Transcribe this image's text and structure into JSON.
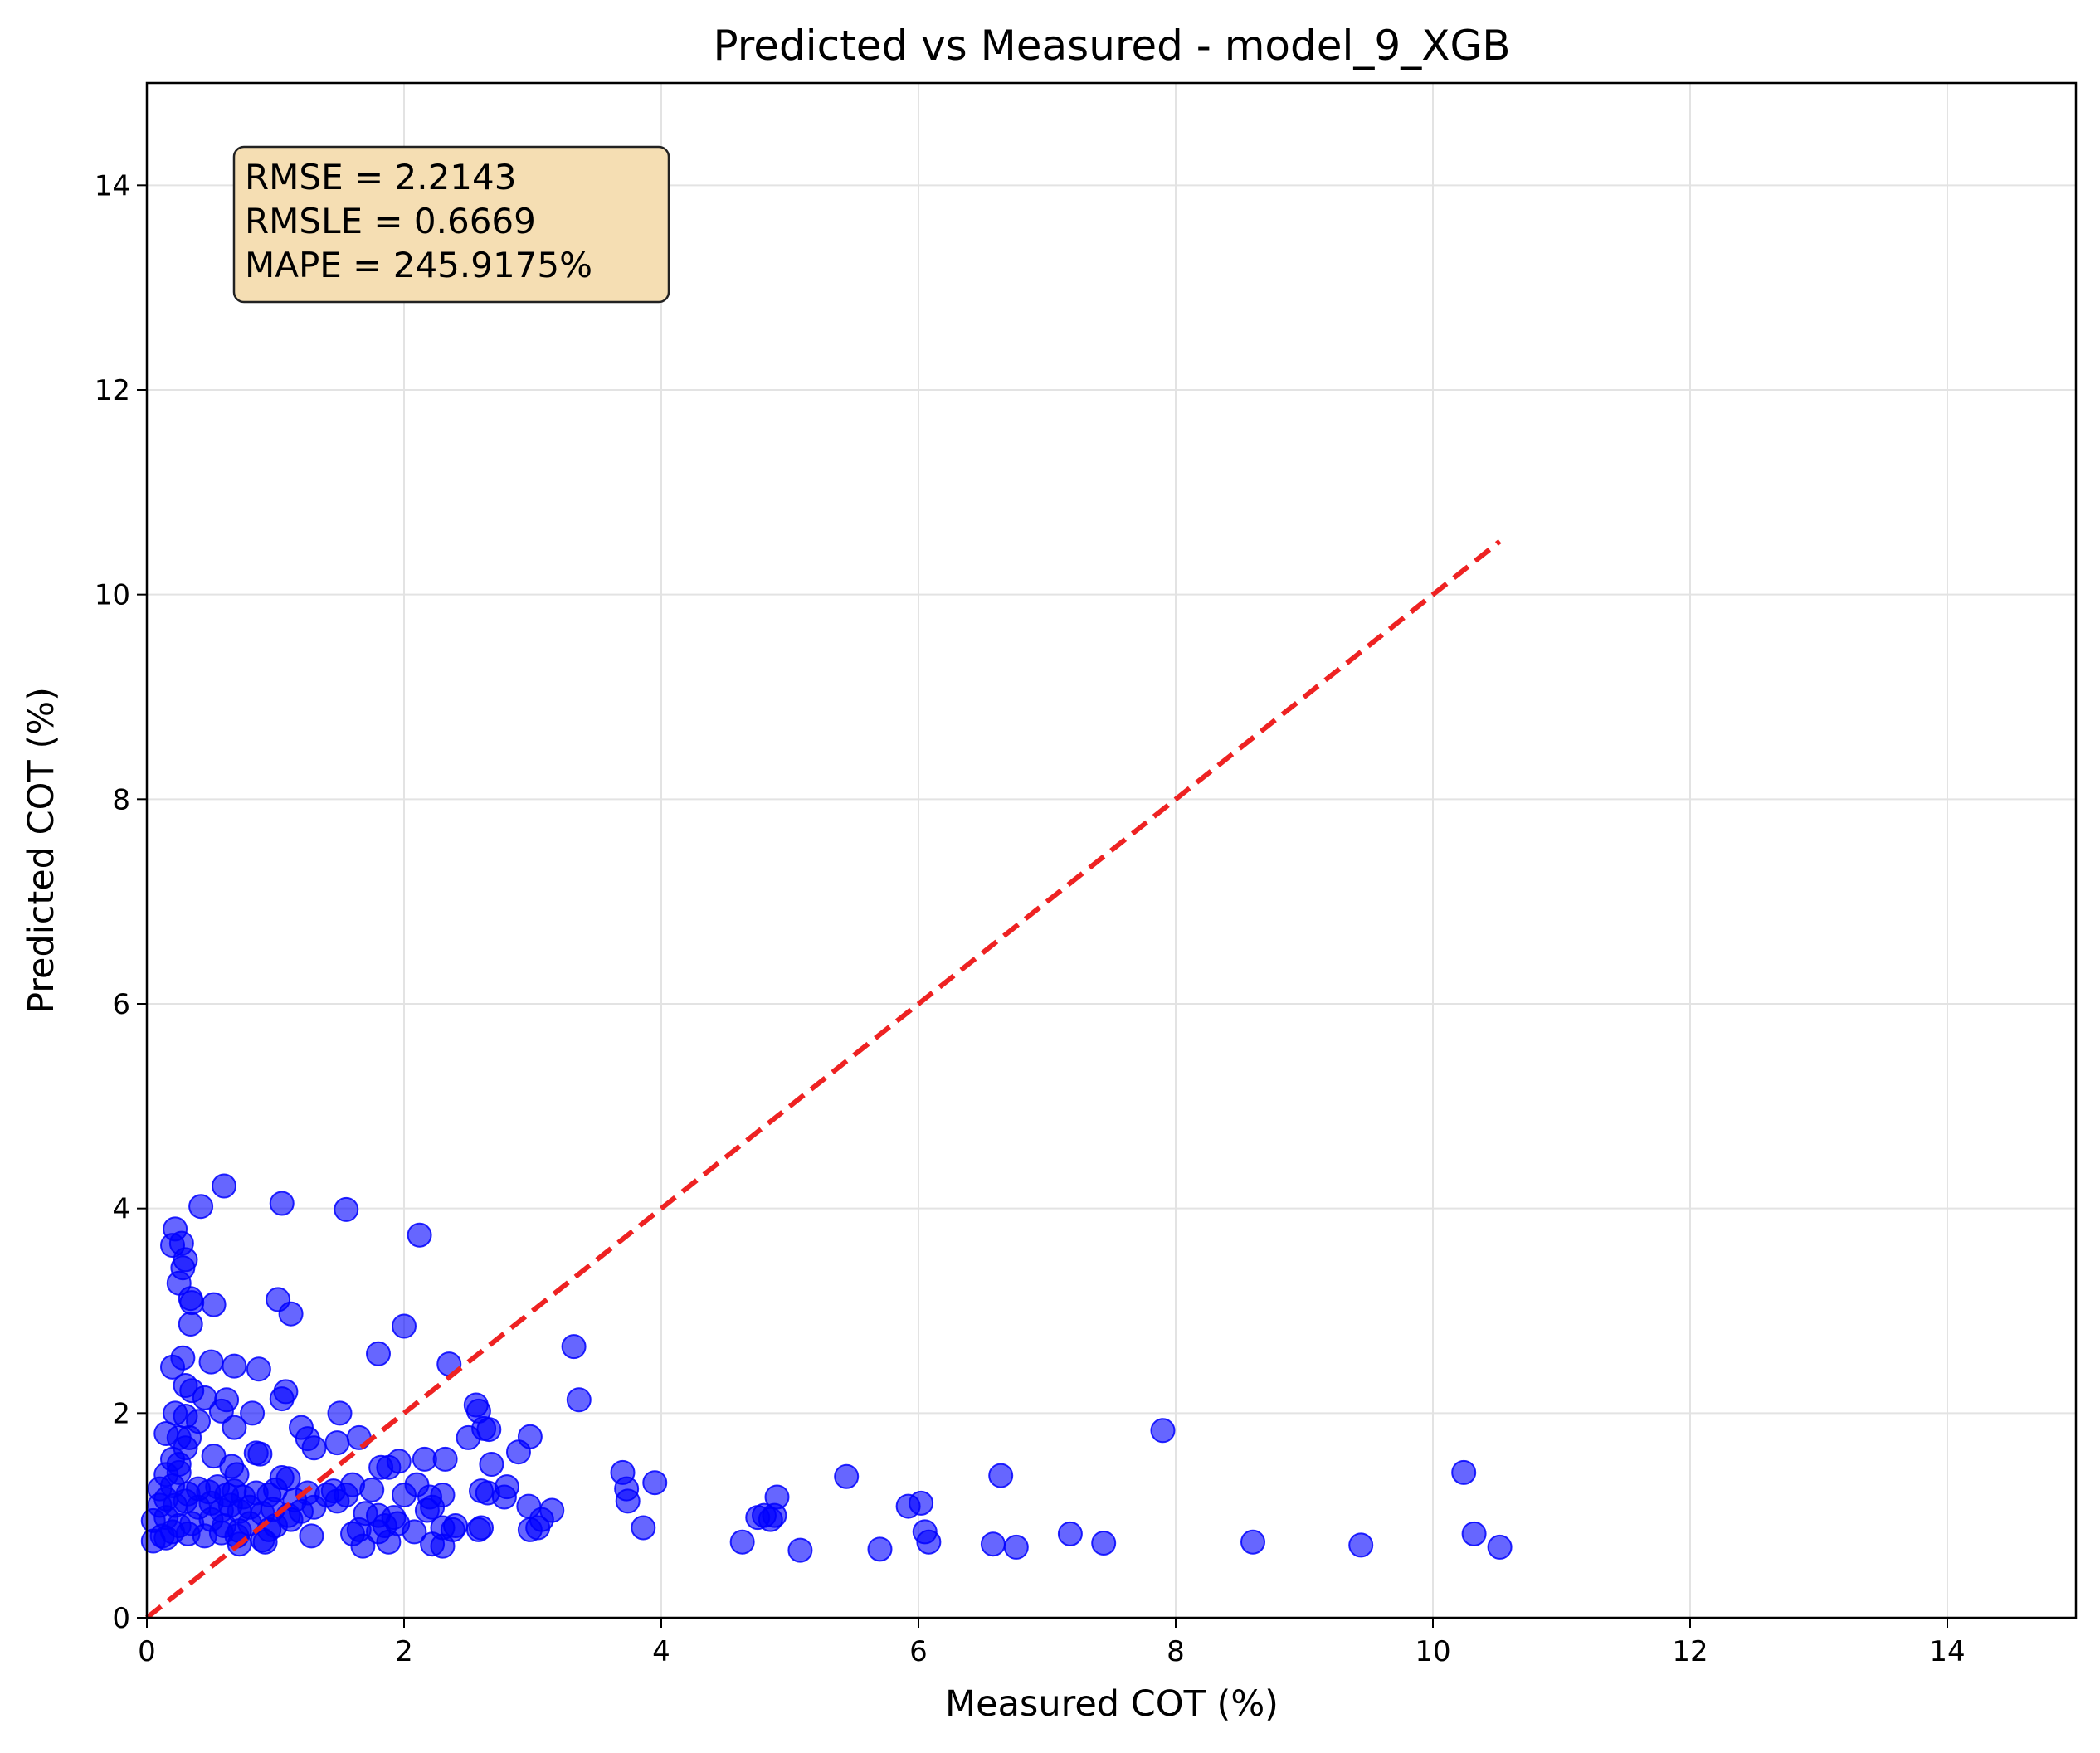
{
  "chart_data": {
    "type": "scatter",
    "title": "Predicted vs Measured - model_9_XGB",
    "xlabel": "Measured COT (%)",
    "ylabel": "Predicted COT (%)",
    "xlim": [
      0,
      15
    ],
    "ylim": [
      0,
      15
    ],
    "xticks": [
      "0",
      "2",
      "4",
      "6",
      "8",
      "10",
      "12",
      "14"
    ],
    "yticks": [
      "0",
      "2",
      "4",
      "6",
      "8",
      "10",
      "12",
      "14"
    ],
    "grid": true,
    "point_color": "#0000ff",
    "reference_line": {
      "x": [
        0,
        10.52
      ],
      "y": [
        0,
        10.52
      ],
      "color": "#ee2222",
      "style": "dashed"
    },
    "annotation": [
      "RMSE = 2.2143",
      "RMSLE = 0.6669",
      "MAPE = 245.9175%"
    ],
    "annotation_background": "#f5deb3",
    "points": [
      [
        0.6,
        4.22
      ],
      [
        0.42,
        4.02
      ],
      [
        1.05,
        4.05
      ],
      [
        1.55,
        3.99
      ],
      [
        2.12,
        3.74
      ],
      [
        0.22,
        3.8
      ],
      [
        0.2,
        3.64
      ],
      [
        0.27,
        3.66
      ],
      [
        0.3,
        3.5
      ],
      [
        0.28,
        3.42
      ],
      [
        0.25,
        3.27
      ],
      [
        0.34,
        3.12
      ],
      [
        0.35,
        3.08
      ],
      [
        0.52,
        3.06
      ],
      [
        1.02,
        3.11
      ],
      [
        1.12,
        2.97
      ],
      [
        0.34,
        2.87
      ],
      [
        2.0,
        2.85
      ],
      [
        3.32,
        2.65
      ],
      [
        1.8,
        2.58
      ],
      [
        2.35,
        2.48
      ],
      [
        0.28,
        2.54
      ],
      [
        0.2,
        2.45
      ],
      [
        0.5,
        2.5
      ],
      [
        0.68,
        2.46
      ],
      [
        0.87,
        2.43
      ],
      [
        0.3,
        2.27
      ],
      [
        0.35,
        2.22
      ],
      [
        0.45,
        2.15
      ],
      [
        0.62,
        2.13
      ],
      [
        1.05,
        2.14
      ],
      [
        1.08,
        2.21
      ],
      [
        3.36,
        2.13
      ],
      [
        2.56,
        2.08
      ],
      [
        2.58,
        2.02
      ],
      [
        0.22,
        2.0
      ],
      [
        0.3,
        1.97
      ],
      [
        0.4,
        1.92
      ],
      [
        0.58,
        2.02
      ],
      [
        0.82,
        2.0
      ],
      [
        1.5,
        2.0
      ],
      [
        1.2,
        1.86
      ],
      [
        2.62,
        1.85
      ],
      [
        2.66,
        1.84
      ],
      [
        0.68,
        1.86
      ],
      [
        0.15,
        1.8
      ],
      [
        0.25,
        1.76
      ],
      [
        0.33,
        1.76
      ],
      [
        1.25,
        1.75
      ],
      [
        1.65,
        1.76
      ],
      [
        2.5,
        1.76
      ],
      [
        2.98,
        1.77
      ],
      [
        1.48,
        1.71
      ],
      [
        1.3,
        1.66
      ],
      [
        0.3,
        1.66
      ],
      [
        7.9,
        1.83
      ],
      [
        0.52,
        1.58
      ],
      [
        0.85,
        1.61
      ],
      [
        0.88,
        1.6
      ],
      [
        2.32,
        1.55
      ],
      [
        2.89,
        1.62
      ],
      [
        0.2,
        1.55
      ],
      [
        0.25,
        1.5
      ],
      [
        0.66,
        1.48
      ],
      [
        1.82,
        1.47
      ],
      [
        1.88,
        1.47
      ],
      [
        1.96,
        1.53
      ],
      [
        2.16,
        1.55
      ],
      [
        2.68,
        1.5
      ],
      [
        3.7,
        1.42
      ],
      [
        0.15,
        1.4
      ],
      [
        0.25,
        1.42
      ],
      [
        0.7,
        1.4
      ],
      [
        1.05,
        1.37
      ],
      [
        1.1,
        1.36
      ],
      [
        1.6,
        1.3
      ],
      [
        1.75,
        1.25
      ],
      [
        2.1,
        1.3
      ],
      [
        2.8,
        1.28
      ],
      [
        3.73,
        1.26
      ],
      [
        3.95,
        1.32
      ],
      [
        5.44,
        1.38
      ],
      [
        6.64,
        1.39
      ],
      [
        10.24,
        1.42
      ],
      [
        0.1,
        1.26
      ],
      [
        0.2,
        1.29
      ],
      [
        0.32,
        1.21
      ],
      [
        0.4,
        1.26
      ],
      [
        0.48,
        1.23
      ],
      [
        0.55,
        1.28
      ],
      [
        0.62,
        1.2
      ],
      [
        0.68,
        1.24
      ],
      [
        0.75,
        1.18
      ],
      [
        0.85,
        1.22
      ],
      [
        0.95,
        1.2
      ],
      [
        1.0,
        1.25
      ],
      [
        1.15,
        1.15
      ],
      [
        1.25,
        1.22
      ],
      [
        1.4,
        1.2
      ],
      [
        1.45,
        1.24
      ],
      [
        1.55,
        1.2
      ],
      [
        2.0,
        1.2
      ],
      [
        2.2,
        1.18
      ],
      [
        2.3,
        1.2
      ],
      [
        2.6,
        1.24
      ],
      [
        2.65,
        1.22
      ],
      [
        2.78,
        1.18
      ],
      [
        3.74,
        1.14
      ],
      [
        4.9,
        1.18
      ],
      [
        5.92,
        1.09
      ],
      [
        6.02,
        1.12
      ],
      [
        0.1,
        1.1
      ],
      [
        0.15,
        1.16
      ],
      [
        0.22,
        1.1
      ],
      [
        0.3,
        1.14
      ],
      [
        0.4,
        1.08
      ],
      [
        0.5,
        1.12
      ],
      [
        0.58,
        1.05
      ],
      [
        0.65,
        1.1
      ],
      [
        0.72,
        1.04
      ],
      [
        0.8,
        1.08
      ],
      [
        0.9,
        1.02
      ],
      [
        0.98,
        1.06
      ],
      [
        1.1,
        1.0
      ],
      [
        1.2,
        1.04
      ],
      [
        1.3,
        1.08
      ],
      [
        1.48,
        1.14
      ],
      [
        1.7,
        1.02
      ],
      [
        1.8,
        1.0
      ],
      [
        1.92,
        0.98
      ],
      [
        2.18,
        1.05
      ],
      [
        2.22,
        1.08
      ],
      [
        2.4,
        0.9
      ],
      [
        2.97,
        1.09
      ],
      [
        3.07,
        0.96
      ],
      [
        3.15,
        1.05
      ],
      [
        4.75,
        0.98
      ],
      [
        4.8,
        1.0
      ],
      [
        4.85,
        0.96
      ],
      [
        4.88,
        1.0
      ],
      [
        0.05,
        0.95
      ],
      [
        0.15,
        0.98
      ],
      [
        0.25,
        0.9
      ],
      [
        0.35,
        0.92
      ],
      [
        0.5,
        0.96
      ],
      [
        0.6,
        0.9
      ],
      [
        0.72,
        0.85
      ],
      [
        0.8,
        0.92
      ],
      [
        0.95,
        0.86
      ],
      [
        1.0,
        0.9
      ],
      [
        1.12,
        0.96
      ],
      [
        1.28,
        0.8
      ],
      [
        1.65,
        0.86
      ],
      [
        1.85,
        0.9
      ],
      [
        1.95,
        0.92
      ],
      [
        2.08,
        0.84
      ],
      [
        2.3,
        0.88
      ],
      [
        2.38,
        0.86
      ],
      [
        2.58,
        0.86
      ],
      [
        2.6,
        0.88
      ],
      [
        2.98,
        0.86
      ],
      [
        3.04,
        0.88
      ],
      [
        3.86,
        0.88
      ],
      [
        6.05,
        0.84
      ],
      [
        7.18,
        0.82
      ],
      [
        10.32,
        0.82
      ],
      [
        0.12,
        0.8
      ],
      [
        0.2,
        0.84
      ],
      [
        0.32,
        0.82
      ],
      [
        0.45,
        0.8
      ],
      [
        0.58,
        0.83
      ],
      [
        0.7,
        0.8
      ],
      [
        0.9,
        0.76
      ],
      [
        1.6,
        0.82
      ],
      [
        1.8,
        0.84
      ],
      [
        0.05,
        0.75
      ],
      [
        0.15,
        0.78
      ],
      [
        0.72,
        0.72
      ],
      [
        0.92,
        0.74
      ],
      [
        1.68,
        0.7
      ],
      [
        1.88,
        0.74
      ],
      [
        2.22,
        0.72
      ],
      [
        2.3,
        0.7
      ],
      [
        4.63,
        0.74
      ],
      [
        5.08,
        0.66
      ],
      [
        5.7,
        0.67
      ],
      [
        6.08,
        0.74
      ],
      [
        6.58,
        0.72
      ],
      [
        6.76,
        0.69
      ],
      [
        7.44,
        0.73
      ],
      [
        8.6,
        0.74
      ],
      [
        9.44,
        0.71
      ],
      [
        10.52,
        0.69
      ]
    ]
  }
}
